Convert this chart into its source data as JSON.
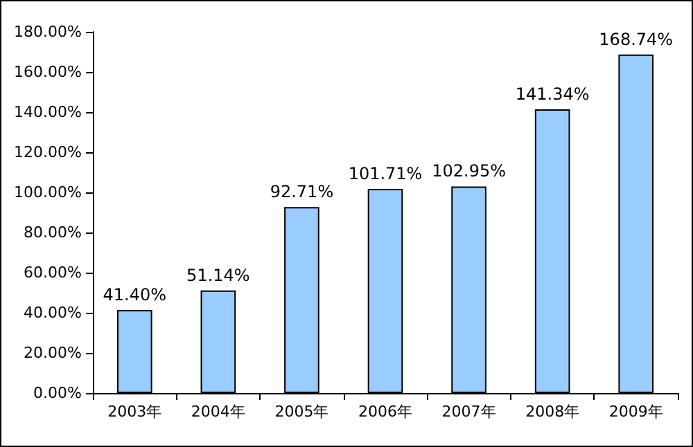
{
  "chart_data": {
    "type": "bar",
    "categories": [
      "2003年",
      "2004年",
      "2005年",
      "2006年",
      "2007年",
      "2008年",
      "2009年"
    ],
    "values": [
      41.4,
      51.14,
      92.71,
      101.71,
      102.95,
      141.34,
      168.74
    ],
    "value_labels": [
      "41.40%",
      "51.14%",
      "92.71%",
      "101.71%",
      "102.95%",
      "141.34%",
      "168.74%"
    ],
    "color": "#99ccff",
    "ylim": [
      0,
      180
    ],
    "yticks": [
      {
        "value": 0,
        "label": "0.00%"
      },
      {
        "value": 20,
        "label": "20.00%"
      },
      {
        "value": 40,
        "label": "40.00%"
      },
      {
        "value": 60,
        "label": "60.00%"
      },
      {
        "value": 80,
        "label": "80.00%"
      },
      {
        "value": 100,
        "label": "100.00%"
      },
      {
        "value": 120,
        "label": "120.00%"
      },
      {
        "value": 140,
        "label": "140.00%"
      },
      {
        "value": 160,
        "label": "160.00%"
      },
      {
        "value": 180,
        "label": "180.00%"
      }
    ]
  }
}
